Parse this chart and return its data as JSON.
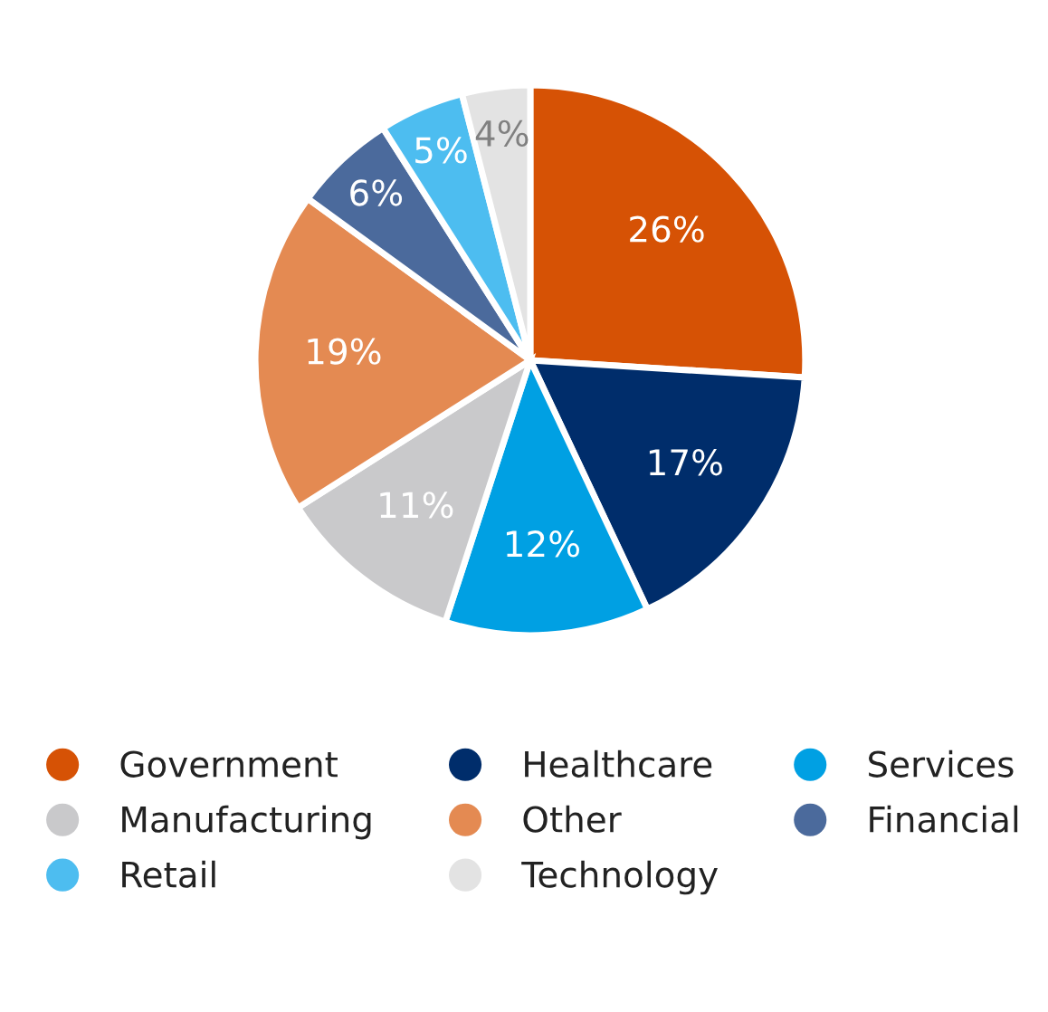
{
  "chart_data": {
    "type": "pie",
    "categories": [
      "Government",
      "Healthcare",
      "Services",
      "Manufacturing",
      "Other",
      "Financial",
      "Retail",
      "Technology"
    ],
    "values": [
      26,
      17,
      12,
      11,
      19,
      6,
      5,
      4
    ],
    "colors": [
      "#d65205",
      "#002d6b",
      "#00a0e3",
      "#c9c9cb",
      "#e48a52",
      "#4b6a9c",
      "#4dbdf0",
      "#e3e3e3"
    ],
    "value_labels": [
      "26%",
      "17%",
      "12%",
      "11%",
      "19%",
      "6%",
      "5%",
      "4%"
    ],
    "legend": "bottom"
  }
}
